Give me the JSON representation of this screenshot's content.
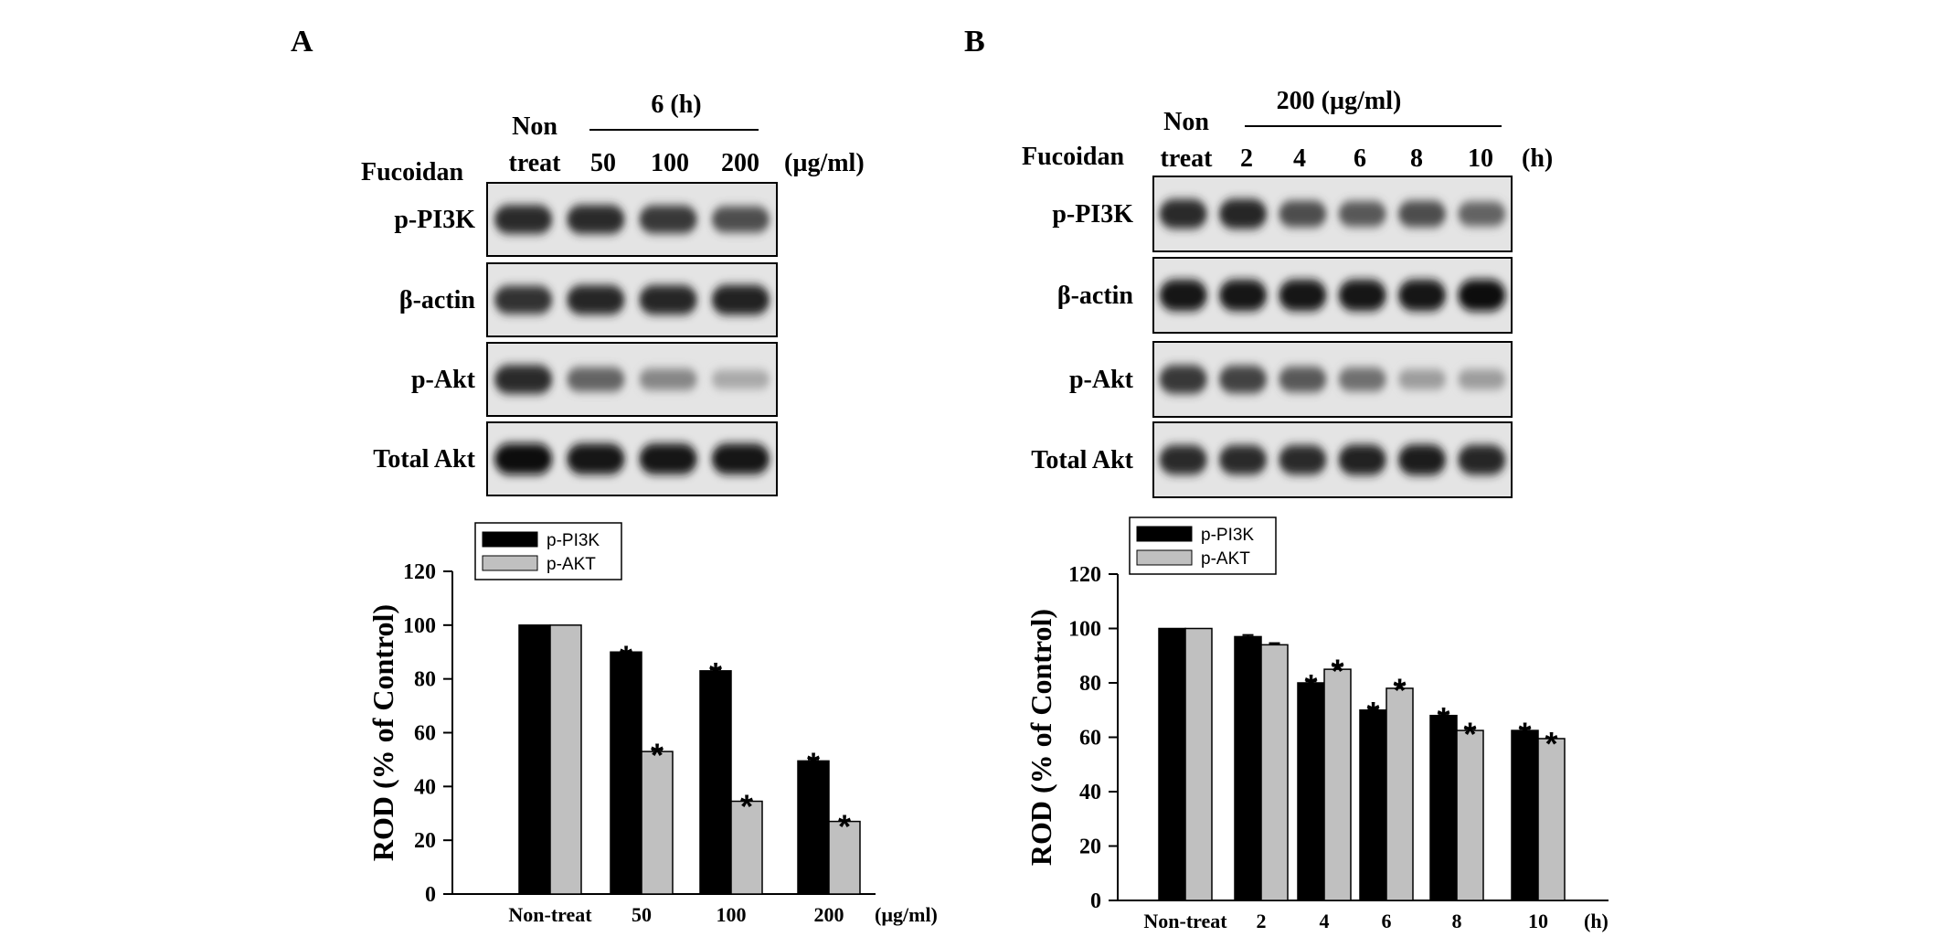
{
  "panels": [
    {
      "letter": "A",
      "blot": {
        "group_header": "6 (h)",
        "non_treat_top": "Non",
        "non_treat_bottom": "treat",
        "treatment_label": "Fucoidan",
        "lane_labels": [
          "50",
          "100",
          "200"
        ],
        "unit_label": "(µg/ml)",
        "rows": [
          {
            "label": "p-PI3K",
            "intensity": [
              0.85,
              0.85,
              0.8,
              0.7
            ]
          },
          {
            "label": "β-actin",
            "intensity": [
              0.82,
              0.88,
              0.88,
              0.9
            ]
          },
          {
            "label": "p-Akt",
            "intensity": [
              0.85,
              0.6,
              0.45,
              0.3
            ]
          },
          {
            "label": "Total Akt",
            "intensity": [
              0.98,
              0.96,
              0.96,
              0.96
            ]
          }
        ]
      }
    },
    {
      "letter": "B",
      "blot": {
        "group_header": "200 (µg/ml)",
        "non_treat_top": "Non",
        "non_treat_bottom": "treat",
        "treatment_label": "Fucoidan",
        "lane_labels": [
          "2",
          "4",
          "6",
          "8",
          "10"
        ],
        "unit_label": "(h)",
        "rows": [
          {
            "label": "p-PI3K",
            "intensity": [
              0.85,
              0.88,
              0.7,
              0.65,
              0.7,
              0.6
            ]
          },
          {
            "label": "β-actin",
            "intensity": [
              0.95,
              0.95,
              0.95,
              0.95,
              0.95,
              0.97
            ]
          },
          {
            "label": "p-Akt",
            "intensity": [
              0.8,
              0.75,
              0.65,
              0.55,
              0.35,
              0.35
            ]
          },
          {
            "label": "Total Akt",
            "intensity": [
              0.85,
              0.85,
              0.85,
              0.9,
              0.92,
              0.88
            ]
          }
        ]
      }
    }
  ],
  "chart_data": [
    {
      "type": "bar",
      "categories": [
        "Non-treat",
        "50",
        "100",
        "200"
      ],
      "x_unit_label": "(µg/ml)",
      "ylabel": "ROD (% of Control)",
      "ylim": [
        0,
        120
      ],
      "yticks": [
        0,
        20,
        40,
        60,
        80,
        100,
        120
      ],
      "legend_position": "top-left",
      "series": [
        {
          "name": "p-PI3K",
          "color": "#000000",
          "values": [
            100,
            90,
            83,
            49.5
          ],
          "errors": [
            0,
            0,
            0.6,
            0.6
          ],
          "significant": [
            false,
            true,
            true,
            true
          ]
        },
        {
          "name": "p-AKT",
          "color": "#c0c0c0",
          "values": [
            100,
            53,
            34.5,
            27
          ],
          "errors": [
            0,
            0.6,
            0,
            0
          ],
          "significant": [
            false,
            true,
            true,
            true
          ]
        }
      ]
    },
    {
      "type": "bar",
      "categories": [
        "Non-treat",
        "2",
        "4",
        "6",
        "8",
        "10"
      ],
      "x_unit_label": "(h)",
      "ylabel": "ROD (% of Control)",
      "ylim": [
        0,
        120
      ],
      "yticks": [
        0,
        20,
        40,
        60,
        80,
        100,
        120
      ],
      "legend_position": "top-left",
      "series": [
        {
          "name": "p-PI3K",
          "color": "#000000",
          "values": [
            100,
            97,
            80,
            70,
            68,
            62.5
          ],
          "errors": [
            0,
            0.6,
            0.6,
            0.6,
            0.6,
            0.6
          ],
          "significant": [
            false,
            false,
            true,
            true,
            true,
            true
          ]
        },
        {
          "name": "p-AKT",
          "color": "#c0c0c0",
          "values": [
            100,
            94,
            85,
            78,
            62.5,
            59.5
          ],
          "errors": [
            0,
            0.6,
            1.2,
            1.2,
            0.6,
            0
          ],
          "significant": [
            false,
            false,
            true,
            true,
            true,
            true
          ]
        }
      ]
    }
  ]
}
